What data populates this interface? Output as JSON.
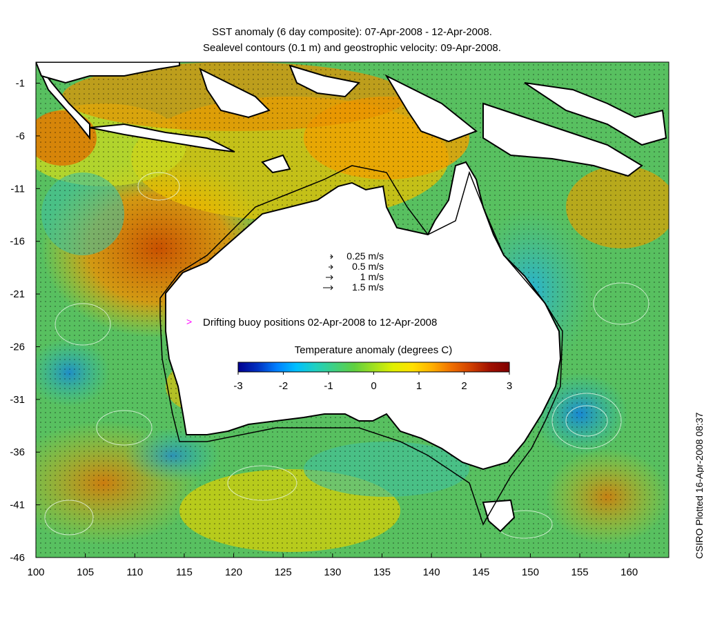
{
  "titles": {
    "line1": "SST anomaly (6 day composite): 07-Apr-2008 - 12-Apr-2008.",
    "line2": "Sealevel contours (0.1 m) and geostrophic velocity: 09-Apr-2008."
  },
  "credit": "CSIRO Plotted 16-Apr-2008 08:37",
  "axes": {
    "x_ticks": [
      "100",
      "105",
      "110",
      "115",
      "120",
      "125",
      "130",
      "135",
      "140",
      "145",
      "150",
      "155",
      "160"
    ],
    "y_ticks": [
      "-1",
      "-6",
      "-11",
      "-16",
      "-21",
      "-26",
      "-31",
      "-36",
      "-41",
      "-46"
    ],
    "lon_range": [
      100,
      164
    ],
    "lat_range": [
      -46,
      1
    ]
  },
  "velocity_legend": [
    {
      "label": "0.25 m/s",
      "speed": 0.25
    },
    {
      "label": "0.5 m/s",
      "speed": 0.5
    },
    {
      "label": "1 m/s",
      "speed": 1
    },
    {
      "label": "1.5 m/s",
      "speed": 1.5
    }
  ],
  "buoy_legend": {
    "label": "Drifting buoy positions 02-Apr-2008 to 12-Apr-2008",
    "marker": ">",
    "color": "#ff00ff"
  },
  "colorbar": {
    "title": "Temperature anomaly (degrees C)",
    "ticks": [
      "-3",
      "-2",
      "-1",
      "0",
      "1",
      "2",
      "3"
    ],
    "range": [
      -3,
      3
    ],
    "colors": [
      "#00008f",
      "#0030c0",
      "#0080ff",
      "#00c0ff",
      "#20d0c0",
      "#40d080",
      "#60d040",
      "#a0e020",
      "#e0f000",
      "#ffe000",
      "#ffb000",
      "#f07000",
      "#d04000",
      "#a01000",
      "#800000"
    ]
  },
  "style_colors": {
    "land": "#ffffff",
    "coast": "#000000",
    "contour": "#e8f8e8",
    "shelf_line": "#000000"
  }
}
